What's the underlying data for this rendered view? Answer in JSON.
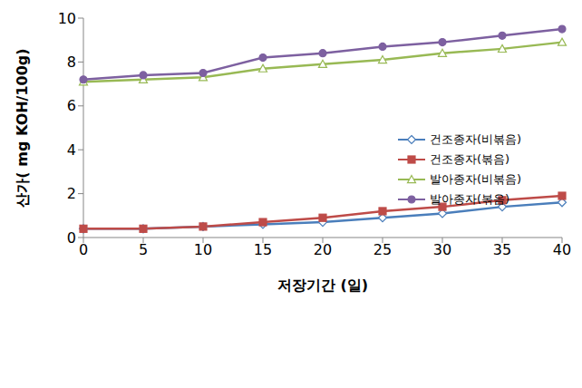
{
  "chart_data": {
    "type": "line",
    "x_label": "저장기간 (일)",
    "y_label": "산가( mg KOH/100g)",
    "categories": [
      0,
      5,
      10,
      15,
      20,
      25,
      30,
      35,
      40
    ],
    "ylim": [
      0,
      10
    ],
    "yticks": [
      0,
      2,
      4,
      6,
      8,
      10
    ],
    "grid": false,
    "legend": "right",
    "series": [
      {
        "name": "건조종자(비볶음)",
        "color": "#4a7ebb",
        "marker": "open_diamond",
        "values": [
          0.4,
          0.4,
          0.5,
          0.6,
          0.7,
          0.9,
          1.1,
          1.4,
          1.6
        ]
      },
      {
        "name": "건조종자(볶음)",
        "color": "#be4b48",
        "marker": "square",
        "values": [
          0.4,
          0.4,
          0.5,
          0.7,
          0.9,
          1.2,
          1.4,
          1.7,
          1.9
        ]
      },
      {
        "name": "발아종자(비볶음)",
        "color": "#98b954",
        "marker": "open_triangle",
        "values": [
          7.1,
          7.2,
          7.3,
          7.7,
          7.9,
          8.1,
          8.4,
          8.6,
          8.9
        ]
      },
      {
        "name": "발아종자(볶음)",
        "color": "#7d60a0",
        "marker": "circle",
        "values": [
          7.2,
          7.4,
          7.5,
          8.2,
          8.4,
          8.7,
          8.9,
          9.2,
          9.5
        ]
      }
    ]
  }
}
